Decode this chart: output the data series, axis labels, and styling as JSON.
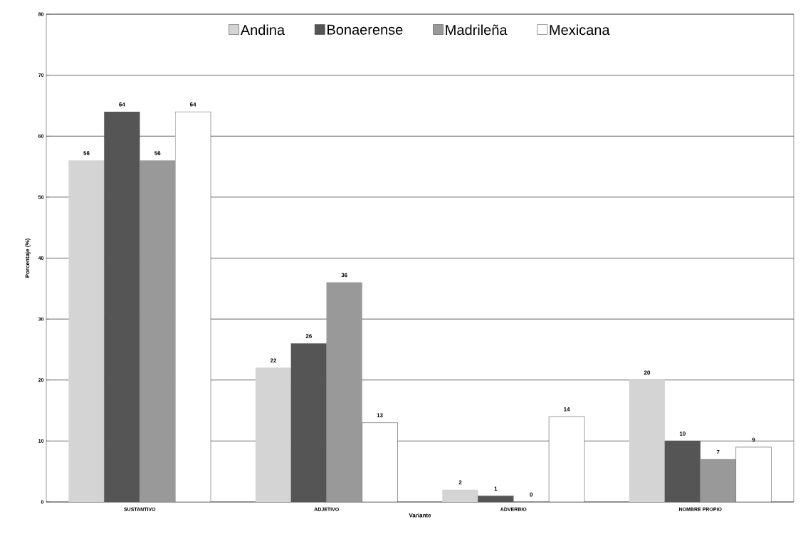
{
  "chart_data": {
    "type": "bar",
    "xlabel": "Variante",
    "ylabel": "Porcentaje (%)",
    "categories": [
      "SUSTANTIVO",
      "ADJETIVO",
      "ADVERBIO",
      "NOMBRE PROPIO"
    ],
    "series": [
      {
        "name": "Andina",
        "color": "#d4d4d4",
        "values": [
          56,
          22,
          2,
          20
        ]
      },
      {
        "name": "Bonaerense",
        "color": "#555555",
        "values": [
          64,
          26,
          1,
          10
        ]
      },
      {
        "name": "Madrileña",
        "color": "#999999",
        "values": [
          56,
          36,
          0,
          7
        ]
      },
      {
        "name": "Mexicana",
        "color": "#ffffff",
        "values": [
          64,
          13,
          14,
          9
        ]
      }
    ],
    "ylim": [
      0,
      80
    ],
    "yticks": [
      0,
      10,
      20,
      30,
      40,
      50,
      60,
      70,
      80
    ],
    "grid": "y",
    "legend": "top",
    "data_labels": true
  }
}
